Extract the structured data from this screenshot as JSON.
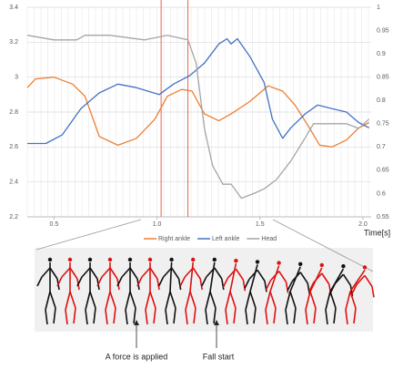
{
  "chart_data": {
    "type": "line",
    "x_label": "Time[s]",
    "xlim": [
      0.37,
      2.04
    ],
    "xticks": [
      0.5,
      {
        "value": 1,
        "label": "1.0"
      },
      1.5,
      {
        "value": 2,
        "label": "2.0"
      }
    ],
    "ylim": [
      2.2,
      3.4
    ],
    "yticks": [
      2.2,
      2.4,
      2.6,
      2.8,
      3,
      3.2,
      3.4
    ],
    "y2lim": [
      0.55,
      1
    ],
    "y2ticks": [
      0.55,
      0.6,
      0.65,
      0.7,
      0.75,
      0.8,
      0.85,
      0.9,
      0.95,
      1
    ],
    "grid": true,
    "legend": "bottom",
    "series": [
      {
        "name": "Right ankle",
        "color": "#ed7d31",
        "x": [
          0.37,
          0.41,
          0.5,
          0.59,
          0.65,
          0.72,
          0.81,
          0.9,
          0.99,
          1.05,
          1.12,
          1.17,
          1.23,
          1.3,
          1.36,
          1.45,
          1.54,
          1.61,
          1.67,
          1.74,
          1.79,
          1.85,
          1.92,
          1.98,
          2.03
        ],
        "values": [
          2.94,
          2.99,
          3.0,
          2.96,
          2.89,
          2.66,
          2.61,
          2.65,
          2.76,
          2.89,
          2.93,
          2.92,
          2.79,
          2.75,
          2.79,
          2.86,
          2.95,
          2.92,
          2.84,
          2.71,
          2.61,
          2.6,
          2.64,
          2.71,
          2.74
        ]
      },
      {
        "name": "Left ankle",
        "color": "#4472c4",
        "x": [
          0.37,
          0.46,
          0.54,
          0.63,
          0.72,
          0.81,
          0.9,
          1.01,
          1.08,
          1.16,
          1.23,
          1.3,
          1.34,
          1.36,
          1.39,
          1.45,
          1.52,
          1.56,
          1.61,
          1.65,
          1.72,
          1.78,
          1.85,
          1.92,
          1.98,
          2.03
        ],
        "values": [
          2.62,
          2.62,
          2.67,
          2.82,
          2.91,
          2.96,
          2.94,
          2.9,
          2.96,
          3.01,
          3.08,
          3.19,
          3.22,
          3.19,
          3.22,
          3.12,
          2.97,
          2.76,
          2.65,
          2.71,
          2.79,
          2.84,
          2.82,
          2.8,
          2.74,
          2.71
        ]
      },
      {
        "name": "Head",
        "color": "#a5a5a5",
        "axis": "y2",
        "x": [
          0.37,
          0.5,
          0.61,
          0.65,
          0.77,
          0.94,
          1.05,
          1.15,
          1.19,
          1.23,
          1.27,
          1.32,
          1.36,
          1.41,
          1.47,
          1.52,
          1.58,
          1.65,
          1.72,
          1.76,
          1.83,
          1.92,
          1.98,
          2.03
        ],
        "values": [
          0.94,
          0.93,
          0.93,
          0.94,
          0.94,
          0.93,
          0.94,
          0.93,
          0.88,
          0.74,
          0.66,
          0.62,
          0.62,
          0.59,
          0.6,
          0.61,
          0.63,
          0.67,
          0.72,
          0.75,
          0.75,
          0.75,
          0.74,
          0.76
        ]
      }
    ],
    "annotations": [
      {
        "x": 1.02,
        "text": "A force is applied",
        "color": "#e8624a"
      },
      {
        "x": 1.15,
        "text": "Fall start",
        "color": "#e8624a"
      }
    ]
  }
}
